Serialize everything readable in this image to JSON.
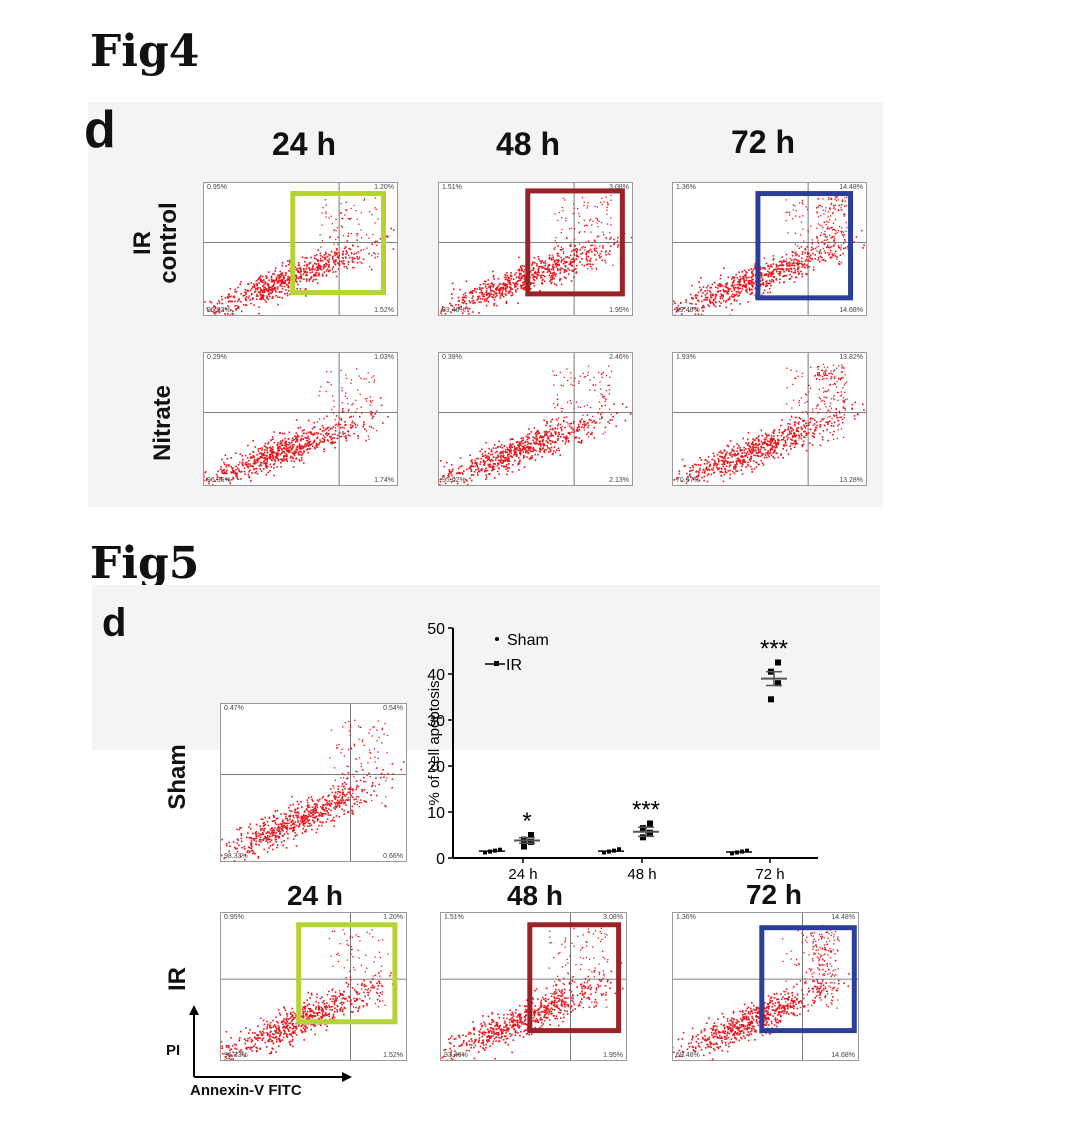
{
  "fig4": {
    "title": "Fig4",
    "panel": "d",
    "times": [
      "24 h",
      "48 h",
      "72 h"
    ],
    "rows": [
      {
        "label": "IR\ncontrol",
        "label_line1": "IR",
        "label_line2": "control",
        "plots": [
          {
            "tl": "0.95%",
            "tr": "1.20%",
            "bl": "96.33%",
            "br": "1.52%",
            "highlight": "#b5d334"
          },
          {
            "tl": "1.51%",
            "tr": "3.08%",
            "bl": "93.46%",
            "br": "1.95%",
            "highlight": "#9b2226"
          },
          {
            "tl": "1.36%",
            "tr": "14.48%",
            "bl": "69.48%",
            "br": "14.68%",
            "highlight": "#2b3f9a"
          }
        ]
      },
      {
        "label": "Nitrate",
        "label_line1": "Nitrate",
        "label_line2": "",
        "plots": [
          {
            "tl": "0.29%",
            "tr": "1.03%",
            "bl": "96.95%",
            "br": "1.74%",
            "highlight": ""
          },
          {
            "tl": "0.39%",
            "tr": "2.46%",
            "bl": "95.02%",
            "br": "2.13%",
            "highlight": ""
          },
          {
            "tl": "1.93%",
            "tr": "13.82%",
            "bl": "70.97%",
            "br": "13.28%",
            "highlight": ""
          }
        ]
      }
    ]
  },
  "fig5": {
    "title": "Fig5",
    "panel": "d",
    "sham_label": "Sham",
    "ir_label": "IR",
    "times": [
      "24 h",
      "48 h",
      "72 h"
    ],
    "sham_plot": {
      "tl": "0.47%",
      "tr": "0.54%",
      "bl": "98.33%",
      "br": "0.66%"
    },
    "ir_plots": [
      {
        "tl": "0.95%",
        "tr": "1.20%",
        "bl": "96.33%",
        "br": "1.52%",
        "highlight": "#b5d334"
      },
      {
        "tl": "1.51%",
        "tr": "3.08%",
        "bl": "93.46%",
        "br": "1.95%",
        "highlight": "#9b2226"
      },
      {
        "tl": "1.36%",
        "tr": "14.48%",
        "bl": "69.48%",
        "br": "14.68%",
        "highlight": "#2b3f9a"
      }
    ],
    "axis_y": "PI",
    "axis_x": "Annexin-V FITC"
  },
  "colors": {
    "dots": "#e8141c",
    "green_box": "#b5d334",
    "red_box": "#9b2226",
    "blue_box": "#2b3f9a",
    "panel_bg": "#f4f4f4"
  },
  "chart_data": {
    "type": "scatter",
    "ylabel": "% of cell apoptosis",
    "xlabel": "",
    "categories": [
      "24 h",
      "48 h",
      "72 h"
    ],
    "ylim": [
      0,
      50
    ],
    "yticks": [
      0,
      10,
      20,
      30,
      40,
      50
    ],
    "legend": [
      "Sham",
      "IR"
    ],
    "legend_position": "top-left",
    "series": [
      {
        "name": "Sham",
        "mean": [
          1.5,
          1.5,
          1.3
        ],
        "points": [
          [
            1.2,
            1.4,
            1.6,
            1.8
          ],
          [
            1.2,
            1.4,
            1.6,
            1.9
          ],
          [
            1.0,
            1.2,
            1.4,
            1.6
          ]
        ]
      },
      {
        "name": "IR",
        "mean": [
          3.8,
          5.7,
          39.0
        ],
        "sem": [
          0.6,
          1.0,
          1.5
        ],
        "points": [
          [
            2.5,
            3.5,
            4.0,
            5.0
          ],
          [
            4.5,
            5.5,
            6.5,
            7.5
          ],
          [
            34.5,
            38.0,
            40.5,
            42.5
          ]
        ]
      }
    ],
    "significance": [
      "*",
      "***",
      "***"
    ]
  }
}
